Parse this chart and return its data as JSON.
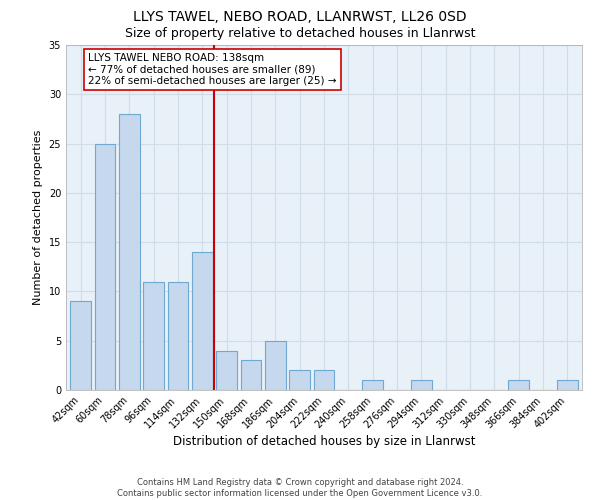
{
  "title1": "LLYS TAWEL, NEBO ROAD, LLANRWST, LL26 0SD",
  "title2": "Size of property relative to detached houses in Llanrwst",
  "xlabel": "Distribution of detached houses by size in Llanrwst",
  "ylabel": "Number of detached properties",
  "bins": [
    "42sqm",
    "60sqm",
    "78sqm",
    "96sqm",
    "114sqm",
    "132sqm",
    "150sqm",
    "168sqm",
    "186sqm",
    "204sqm",
    "222sqm",
    "240sqm",
    "258sqm",
    "276sqm",
    "294sqm",
    "312sqm",
    "330sqm",
    "348sqm",
    "366sqm",
    "384sqm",
    "402sqm"
  ],
  "values": [
    9,
    25,
    28,
    11,
    11,
    14,
    4,
    3,
    5,
    2,
    2,
    0,
    1,
    0,
    1,
    0,
    0,
    0,
    1,
    0,
    1
  ],
  "bar_color": "#c5d8ed",
  "bar_edge_color": "#6fa8d0",
  "bar_width": 0.85,
  "vline_x": 5.5,
  "vline_color": "#cc0000",
  "annotation_text": "LLYS TAWEL NEBO ROAD: 138sqm\n← 77% of detached houses are smaller (89)\n22% of semi-detached houses are larger (25) →",
  "annotation_box_color": "#ffffff",
  "annotation_box_edge": "#cc0000",
  "ylim": [
    0,
    35
  ],
  "yticks": [
    0,
    5,
    10,
    15,
    20,
    25,
    30,
    35
  ],
  "grid_color": "#d0dce8",
  "bg_color": "#e8f0f8",
  "footnote": "Contains HM Land Registry data © Crown copyright and database right 2024.\nContains public sector information licensed under the Open Government Licence v3.0.",
  "title1_fontsize": 10,
  "title2_fontsize": 9,
  "xlabel_fontsize": 8.5,
  "ylabel_fontsize": 8,
  "tick_fontsize": 7,
  "annotation_fontsize": 7.5,
  "footnote_fontsize": 6
}
